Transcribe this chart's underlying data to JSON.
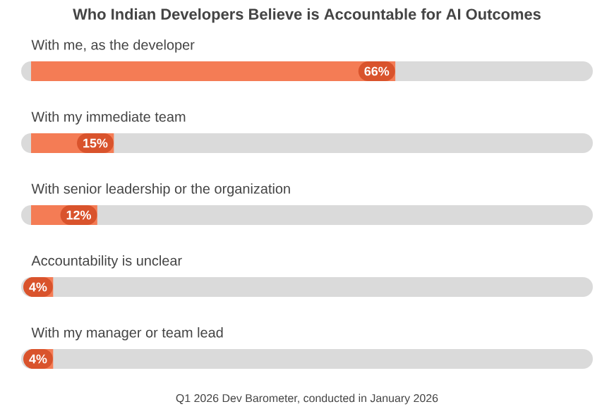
{
  "chart_data": {
    "type": "bar",
    "orientation": "horizontal",
    "title": "Who Indian Developers Believe is Accountable for AI Outcomes",
    "categories": [
      "With me, as the developer",
      "With my immediate team",
      "With senior leadership or the organization",
      "Accountability is unclear",
      "With my manager or team lead"
    ],
    "values": [
      66,
      15,
      12,
      4,
      4
    ],
    "value_labels": [
      "66%",
      "15%",
      "12%",
      "4%",
      "4%"
    ],
    "color": "#f47c55",
    "xlim": [
      0,
      100
    ],
    "annotations": [
      "Q1 2026 Dev Barometer, conducted in January 2026"
    ]
  }
}
